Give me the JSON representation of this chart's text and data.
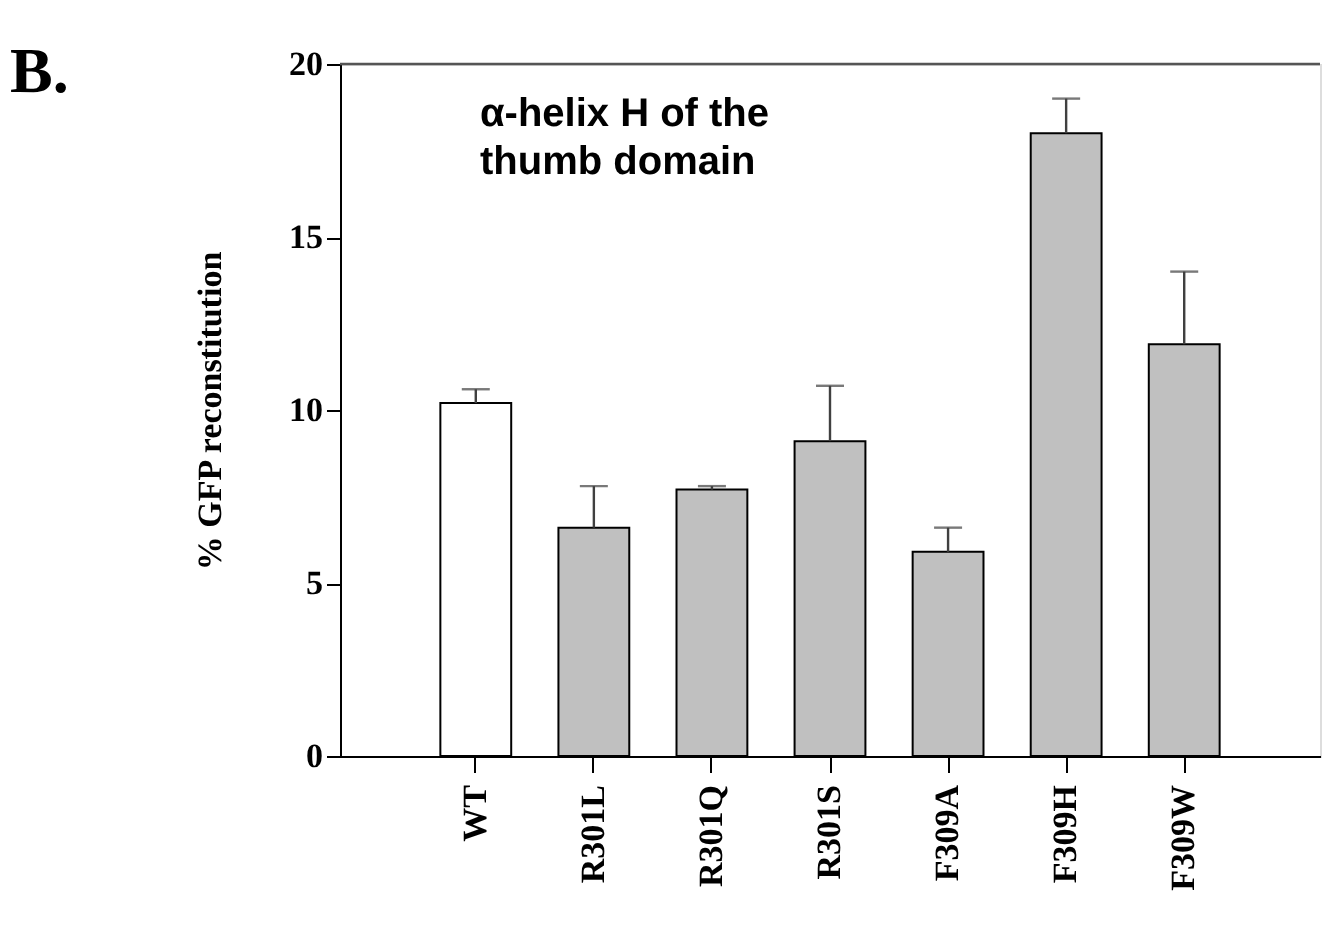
{
  "chart_data": {
    "type": "bar",
    "title": "B.",
    "ylabel": "% GFP  reconstitution",
    "categories": [
      "WT",
      "R301L",
      "R301Q",
      "R301S",
      "F309A",
      "F309H",
      "F309W"
    ],
    "values": [
      10.2,
      6.6,
      7.7,
      9.1,
      5.9,
      18.0,
      11.9
    ],
    "colors": [
      "#ffffff",
      "#c0c0c0",
      "#c0c0c0",
      "#c0c0c0",
      "#c0c0c0",
      "#c0c0c0",
      "#c0c0c0"
    ],
    "errors": [
      [
        10.2,
        10.6
      ],
      [
        6.6,
        7.8
      ],
      [
        7.7,
        7.8
      ],
      [
        9.1,
        10.7
      ],
      [
        5.9,
        6.6
      ],
      [
        18.0,
        19.0
      ],
      [
        11.9,
        14.0
      ]
    ],
    "ylim": [
      0,
      20
    ],
    "yticks": [
      0,
      5,
      10,
      15,
      20
    ],
    "grid": false,
    "annotations": [
      "α-helix H of the\nthumb domain"
    ]
  }
}
